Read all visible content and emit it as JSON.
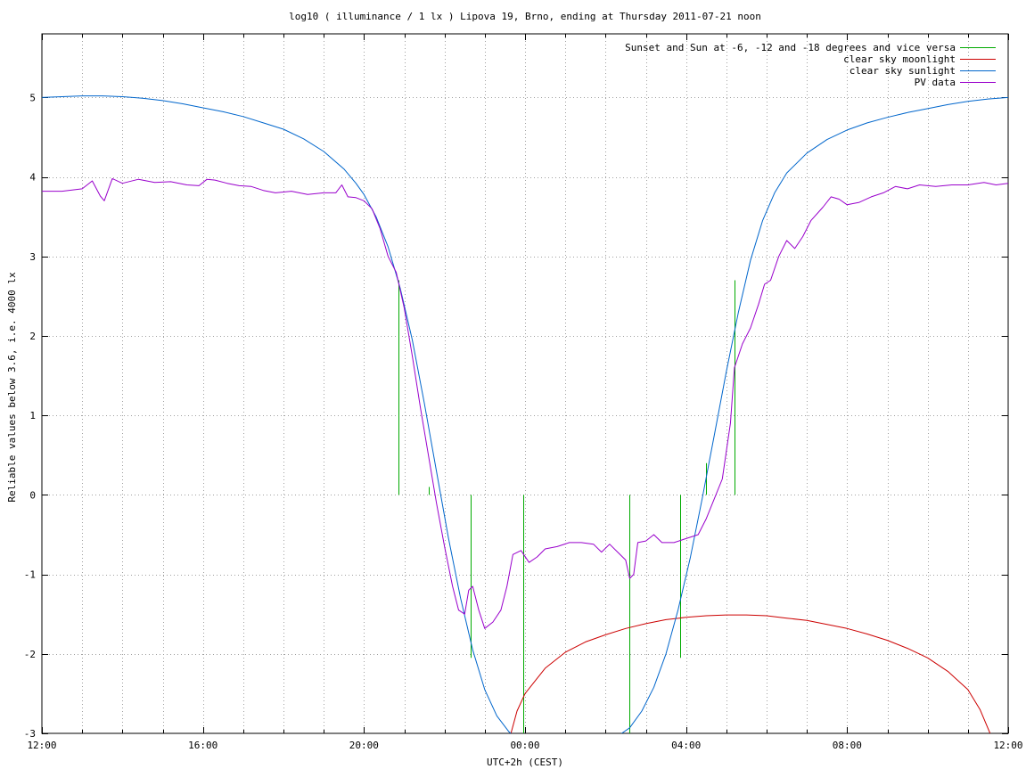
{
  "chart_data": {
    "type": "line",
    "title": "log10 ( illuminance / 1 lx ) Lipova 19, Brno, ending at Thursday 2011-07-21 noon",
    "xlabel": "UTC+2h (CEST)",
    "ylabel": "Reliable values below 3.6, i.e. 4000 lx",
    "x_unit": "hours from 12:00 (Wednesday 2011-07-20)",
    "xlim": [
      0,
      24
    ],
    "ylim": [
      -3,
      5.8
    ],
    "x_ticks": [
      {
        "x": 0,
        "label": "12:00"
      },
      {
        "x": 4,
        "label": "16:00"
      },
      {
        "x": 8,
        "label": "20:00"
      },
      {
        "x": 12,
        "label": "00:00"
      },
      {
        "x": 16,
        "label": "04:00"
      },
      {
        "x": 20,
        "label": "08:00"
      },
      {
        "x": 24,
        "label": "12:00"
      }
    ],
    "x_minor_grid_step": 1,
    "y_ticks": [
      {
        "y": 5,
        "label": "5"
      },
      {
        "y": 4,
        "label": "4"
      },
      {
        "y": 3,
        "label": "3"
      },
      {
        "y": 2,
        "label": "2"
      },
      {
        "y": 1,
        "label": "1"
      },
      {
        "y": 0,
        "label": "0"
      },
      {
        "y": -1,
        "label": "-1"
      },
      {
        "y": -2,
        "label": "-2"
      },
      {
        "y": -3,
        "label": "-3"
      }
    ],
    "grid": true,
    "legend_position": "top-right",
    "series": [
      {
        "name": "Sunset and Sun at -6, -12 and -18 degrees and vice versa",
        "color": "#00aa00",
        "kind": "vertical-markers",
        "markers": [
          {
            "x": 8.85,
            "y0": 0,
            "y1": 2.7
          },
          {
            "x": 9.6,
            "y0": 0,
            "y1": 0.1
          },
          {
            "x": 10.65,
            "y0": -2.05,
            "y1": 0
          },
          {
            "x": 11.95,
            "y0": -3,
            "y1": 0
          },
          {
            "x": 14.6,
            "y0": -3,
            "y1": 0
          },
          {
            "x": 15.85,
            "y0": -2.05,
            "y1": 0
          },
          {
            "x": 16.5,
            "y0": 0,
            "y1": 0.4
          },
          {
            "x": 17.2,
            "y0": 0,
            "y1": 2.7
          }
        ]
      },
      {
        "name": "clear sky moonlight",
        "color": "#cc0000",
        "points": [
          [
            11.65,
            -3.0
          ],
          [
            11.8,
            -2.72
          ],
          [
            12.0,
            -2.5
          ],
          [
            12.5,
            -2.18
          ],
          [
            13.0,
            -1.98
          ],
          [
            13.5,
            -1.85
          ],
          [
            14.0,
            -1.76
          ],
          [
            14.5,
            -1.68
          ],
          [
            15.0,
            -1.62
          ],
          [
            15.5,
            -1.57
          ],
          [
            16.0,
            -1.54
          ],
          [
            16.5,
            -1.52
          ],
          [
            17.0,
            -1.51
          ],
          [
            17.5,
            -1.51
          ],
          [
            18.0,
            -1.52
          ],
          [
            18.5,
            -1.55
          ],
          [
            19.0,
            -1.58
          ],
          [
            19.5,
            -1.63
          ],
          [
            20.0,
            -1.68
          ],
          [
            20.5,
            -1.75
          ],
          [
            21.0,
            -1.83
          ],
          [
            21.5,
            -1.93
          ],
          [
            22.0,
            -2.05
          ],
          [
            22.5,
            -2.22
          ],
          [
            23.0,
            -2.45
          ],
          [
            23.3,
            -2.7
          ],
          [
            23.55,
            -3.0
          ]
        ]
      },
      {
        "name": "clear sky sunlight",
        "color": "#0066cc",
        "points": [
          [
            0.0,
            5.0
          ],
          [
            0.5,
            5.01
          ],
          [
            1.0,
            5.02
          ],
          [
            1.5,
            5.02
          ],
          [
            2.0,
            5.01
          ],
          [
            2.5,
            4.99
          ],
          [
            3.0,
            4.96
          ],
          [
            3.5,
            4.92
          ],
          [
            4.0,
            4.87
          ],
          [
            4.5,
            4.82
          ],
          [
            5.0,
            4.76
          ],
          [
            5.5,
            4.68
          ],
          [
            6.0,
            4.6
          ],
          [
            6.5,
            4.48
          ],
          [
            7.0,
            4.32
          ],
          [
            7.5,
            4.1
          ],
          [
            7.8,
            3.92
          ],
          [
            8.0,
            3.78
          ],
          [
            8.3,
            3.5
          ],
          [
            8.6,
            3.12
          ],
          [
            8.9,
            2.6
          ],
          [
            9.2,
            1.95
          ],
          [
            9.5,
            1.15
          ],
          [
            9.8,
            0.3
          ],
          [
            10.1,
            -0.55
          ],
          [
            10.4,
            -1.3
          ],
          [
            10.7,
            -1.95
          ],
          [
            11.0,
            -2.45
          ],
          [
            11.3,
            -2.78
          ],
          [
            11.6,
            -2.98
          ],
          [
            11.65,
            -3.0
          ]
        ],
        "points_morning": [
          [
            14.4,
            -3.0
          ],
          [
            14.6,
            -2.93
          ],
          [
            14.9,
            -2.72
          ],
          [
            15.2,
            -2.42
          ],
          [
            15.5,
            -2.0
          ],
          [
            15.8,
            -1.45
          ],
          [
            16.1,
            -0.8
          ],
          [
            16.4,
            -0.05
          ],
          [
            16.7,
            0.75
          ],
          [
            17.0,
            1.55
          ],
          [
            17.3,
            2.3
          ],
          [
            17.6,
            2.95
          ],
          [
            17.9,
            3.45
          ],
          [
            18.2,
            3.8
          ],
          [
            18.5,
            4.05
          ],
          [
            19.0,
            4.3
          ],
          [
            19.5,
            4.47
          ],
          [
            20.0,
            4.59
          ],
          [
            20.5,
            4.68
          ],
          [
            21.0,
            4.75
          ],
          [
            21.5,
            4.81
          ],
          [
            22.0,
            4.86
          ],
          [
            22.5,
            4.91
          ],
          [
            23.0,
            4.95
          ],
          [
            23.5,
            4.98
          ],
          [
            24.0,
            5.0
          ]
        ]
      },
      {
        "name": "PV data",
        "color": "#9900cc",
        "points": [
          [
            0.0,
            3.82
          ],
          [
            0.5,
            3.82
          ],
          [
            1.0,
            3.85
          ],
          [
            1.25,
            3.95
          ],
          [
            1.45,
            3.76
          ],
          [
            1.55,
            3.7
          ],
          [
            1.75,
            3.98
          ],
          [
            2.0,
            3.92
          ],
          [
            2.4,
            3.97
          ],
          [
            2.8,
            3.93
          ],
          [
            3.2,
            3.94
          ],
          [
            3.6,
            3.9
          ],
          [
            3.9,
            3.89
          ],
          [
            4.1,
            3.97
          ],
          [
            4.3,
            3.96
          ],
          [
            4.6,
            3.92
          ],
          [
            4.9,
            3.89
          ],
          [
            5.2,
            3.88
          ],
          [
            5.5,
            3.83
          ],
          [
            5.8,
            3.8
          ],
          [
            6.2,
            3.82
          ],
          [
            6.6,
            3.78
          ],
          [
            7.0,
            3.8
          ],
          [
            7.3,
            3.8
          ],
          [
            7.45,
            3.9
          ],
          [
            7.6,
            3.75
          ],
          [
            7.8,
            3.74
          ],
          [
            8.0,
            3.7
          ],
          [
            8.2,
            3.6
          ],
          [
            8.4,
            3.35
          ],
          [
            8.6,
            3.0
          ],
          [
            8.8,
            2.8
          ],
          [
            9.0,
            2.35
          ],
          [
            9.2,
            1.75
          ],
          [
            9.4,
            1.1
          ],
          [
            9.6,
            0.5
          ],
          [
            9.8,
            -0.1
          ],
          [
            10.0,
            -0.65
          ],
          [
            10.2,
            -1.15
          ],
          [
            10.35,
            -1.45
          ],
          [
            10.5,
            -1.5
          ],
          [
            10.6,
            -1.2
          ],
          [
            10.7,
            -1.15
          ],
          [
            10.85,
            -1.45
          ],
          [
            11.0,
            -1.68
          ],
          [
            11.2,
            -1.6
          ],
          [
            11.4,
            -1.45
          ],
          [
            11.55,
            -1.15
          ],
          [
            11.7,
            -0.75
          ],
          [
            11.9,
            -0.7
          ],
          [
            12.1,
            -0.85
          ],
          [
            12.3,
            -0.78
          ],
          [
            12.5,
            -0.68
          ],
          [
            12.8,
            -0.65
          ],
          [
            13.1,
            -0.6
          ],
          [
            13.4,
            -0.6
          ],
          [
            13.7,
            -0.62
          ],
          [
            13.9,
            -0.72
          ],
          [
            14.1,
            -0.62
          ],
          [
            14.3,
            -0.72
          ],
          [
            14.5,
            -0.82
          ],
          [
            14.6,
            -1.05
          ],
          [
            14.7,
            -1.0
          ],
          [
            14.8,
            -0.6
          ],
          [
            15.0,
            -0.58
          ],
          [
            15.2,
            -0.5
          ],
          [
            15.4,
            -0.6
          ],
          [
            15.7,
            -0.6
          ],
          [
            16.0,
            -0.55
          ],
          [
            16.3,
            -0.5
          ],
          [
            16.5,
            -0.3
          ],
          [
            16.7,
            -0.05
          ],
          [
            16.9,
            0.2
          ],
          [
            17.1,
            0.9
          ],
          [
            17.2,
            1.6
          ],
          [
            17.4,
            1.9
          ],
          [
            17.6,
            2.1
          ],
          [
            17.8,
            2.4
          ],
          [
            17.95,
            2.65
          ],
          [
            18.1,
            2.7
          ],
          [
            18.3,
            3.0
          ],
          [
            18.5,
            3.2
          ],
          [
            18.7,
            3.1
          ],
          [
            18.9,
            3.25
          ],
          [
            19.1,
            3.45
          ],
          [
            19.4,
            3.62
          ],
          [
            19.6,
            3.75
          ],
          [
            19.8,
            3.72
          ],
          [
            20.0,
            3.65
          ],
          [
            20.3,
            3.68
          ],
          [
            20.6,
            3.75
          ],
          [
            20.9,
            3.8
          ],
          [
            21.2,
            3.88
          ],
          [
            21.5,
            3.85
          ],
          [
            21.8,
            3.9
          ],
          [
            22.2,
            3.88
          ],
          [
            22.6,
            3.9
          ],
          [
            23.0,
            3.9
          ],
          [
            23.4,
            3.93
          ],
          [
            23.7,
            3.9
          ],
          [
            24.0,
            3.92
          ]
        ]
      }
    ]
  }
}
